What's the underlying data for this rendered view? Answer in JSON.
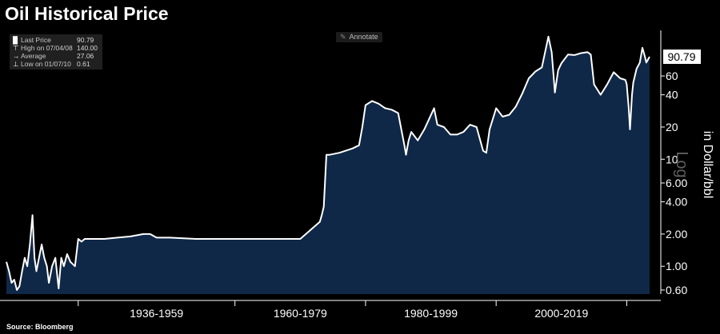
{
  "title": "Oil Historical Price",
  "annotate_label": "Annotate",
  "legend": [
    {
      "label": "Last Price",
      "value": "90.79"
    },
    {
      "label": "High on 07/04/08",
      "value": "140.00"
    },
    {
      "label": "Average",
      "value": "27.06"
    },
    {
      "label": "Low on 01/07/10",
      "value": "0.61"
    }
  ],
  "source": "Source: Bloomberg",
  "colors": {
    "background": "#000000",
    "area_fill": "#0f2848",
    "line": "#ffffff"
  },
  "chart_data": {
    "type": "area",
    "title": "Oil Historical Price",
    "ylabel": "in Dollar/bbl",
    "scale_label": "Log",
    "y_scale": "log",
    "ylim": [
      0.55,
      160
    ],
    "x_range": [
      1925,
      2023.5
    ],
    "yticks": [
      "0.60",
      "1.00",
      "2.00",
      "4.00",
      "6.00",
      "10",
      "20",
      "40",
      "60"
    ],
    "period_labels": [
      "1936-1959",
      "1960-1979",
      "1980-1999",
      "2000-2019"
    ],
    "last_price": "90.79",
    "grid": false,
    "series": [
      {
        "x": [
          1925,
          1925.4,
          1925.8,
          1926.2,
          1926.6,
          1927,
          1927.4,
          1927.8,
          1928.2,
          1928.6,
          1929,
          1929.3,
          1929.6,
          1930,
          1930.4,
          1930.8,
          1931.2,
          1931.5,
          1932,
          1932.5,
          1933,
          1933.4,
          1933.8,
          1934.3,
          1934.8,
          1935.5,
          1936,
          1936.5,
          1937,
          1938,
          1940,
          1942,
          1944,
          1946,
          1947,
          1948,
          1950,
          1954,
          1957,
          1958,
          1960,
          1965,
          1970,
          1972,
          1973,
          1973.3,
          1973.6,
          1974,
          1974.5,
          1976,
          1978,
          1979,
          1979.5,
          1980,
          1981,
          1982,
          1983,
          1984,
          1985,
          1986,
          1986.2,
          1986.6,
          1987,
          1988,
          1989,
          1990.5,
          1991,
          1992,
          1993,
          1994,
          1995,
          1996,
          1997,
          1998,
          1998.5,
          1999,
          2000,
          2001,
          2002,
          2003,
          2004,
          2005,
          2006,
          2007,
          2008,
          2008.5,
          2008.8,
          2009,
          2009.5,
          2010,
          2011,
          2012,
          2013,
          2014,
          2014.5,
          2015,
          2016,
          2017,
          2018,
          2019,
          2019.8,
          2020,
          2020.3,
          2020.5,
          2020.8,
          2021,
          2021.5,
          2022,
          2022.4,
          2022.8,
          2023,
          2023.5
        ],
        "values": [
          1.1,
          0.9,
          0.7,
          0.75,
          0.6,
          0.65,
          0.9,
          1.2,
          1.0,
          1.6,
          3.0,
          1.2,
          0.9,
          1.2,
          1.6,
          1.2,
          1.0,
          0.7,
          1.0,
          1.2,
          0.62,
          1.2,
          1.0,
          1.3,
          1.1,
          1.0,
          1.8,
          1.7,
          1.8,
          1.8,
          1.8,
          1.85,
          1.9,
          2.0,
          2.0,
          1.85,
          1.85,
          1.8,
          1.8,
          1.8,
          1.8,
          1.8,
          1.8,
          2.3,
          2.6,
          3.0,
          3.6,
          11.0,
          11.0,
          11.5,
          12.6,
          13.5,
          20.0,
          32.0,
          35.0,
          33.0,
          30.0,
          29.0,
          27.0,
          13.0,
          11.0,
          15.0,
          18.0,
          15.0,
          19.0,
          30.0,
          21.0,
          20.0,
          17.0,
          17.0,
          18.0,
          21.0,
          20.0,
          12.0,
          11.5,
          19.0,
          30.0,
          25.0,
          26.0,
          31.0,
          41.0,
          57.0,
          66.0,
          72.0,
          140.0,
          100.0,
          60.0,
          42.0,
          68.0,
          79.0,
          95.0,
          94.0,
          98.0,
          100.0,
          95.0,
          50.0,
          40.0,
          50.0,
          65.0,
          57.0,
          55.0,
          50.0,
          30.0,
          19.0,
          40.0,
          52.0,
          70.0,
          80.0,
          110.0,
          90.0,
          80.0,
          90.79
        ]
      }
    ]
  }
}
